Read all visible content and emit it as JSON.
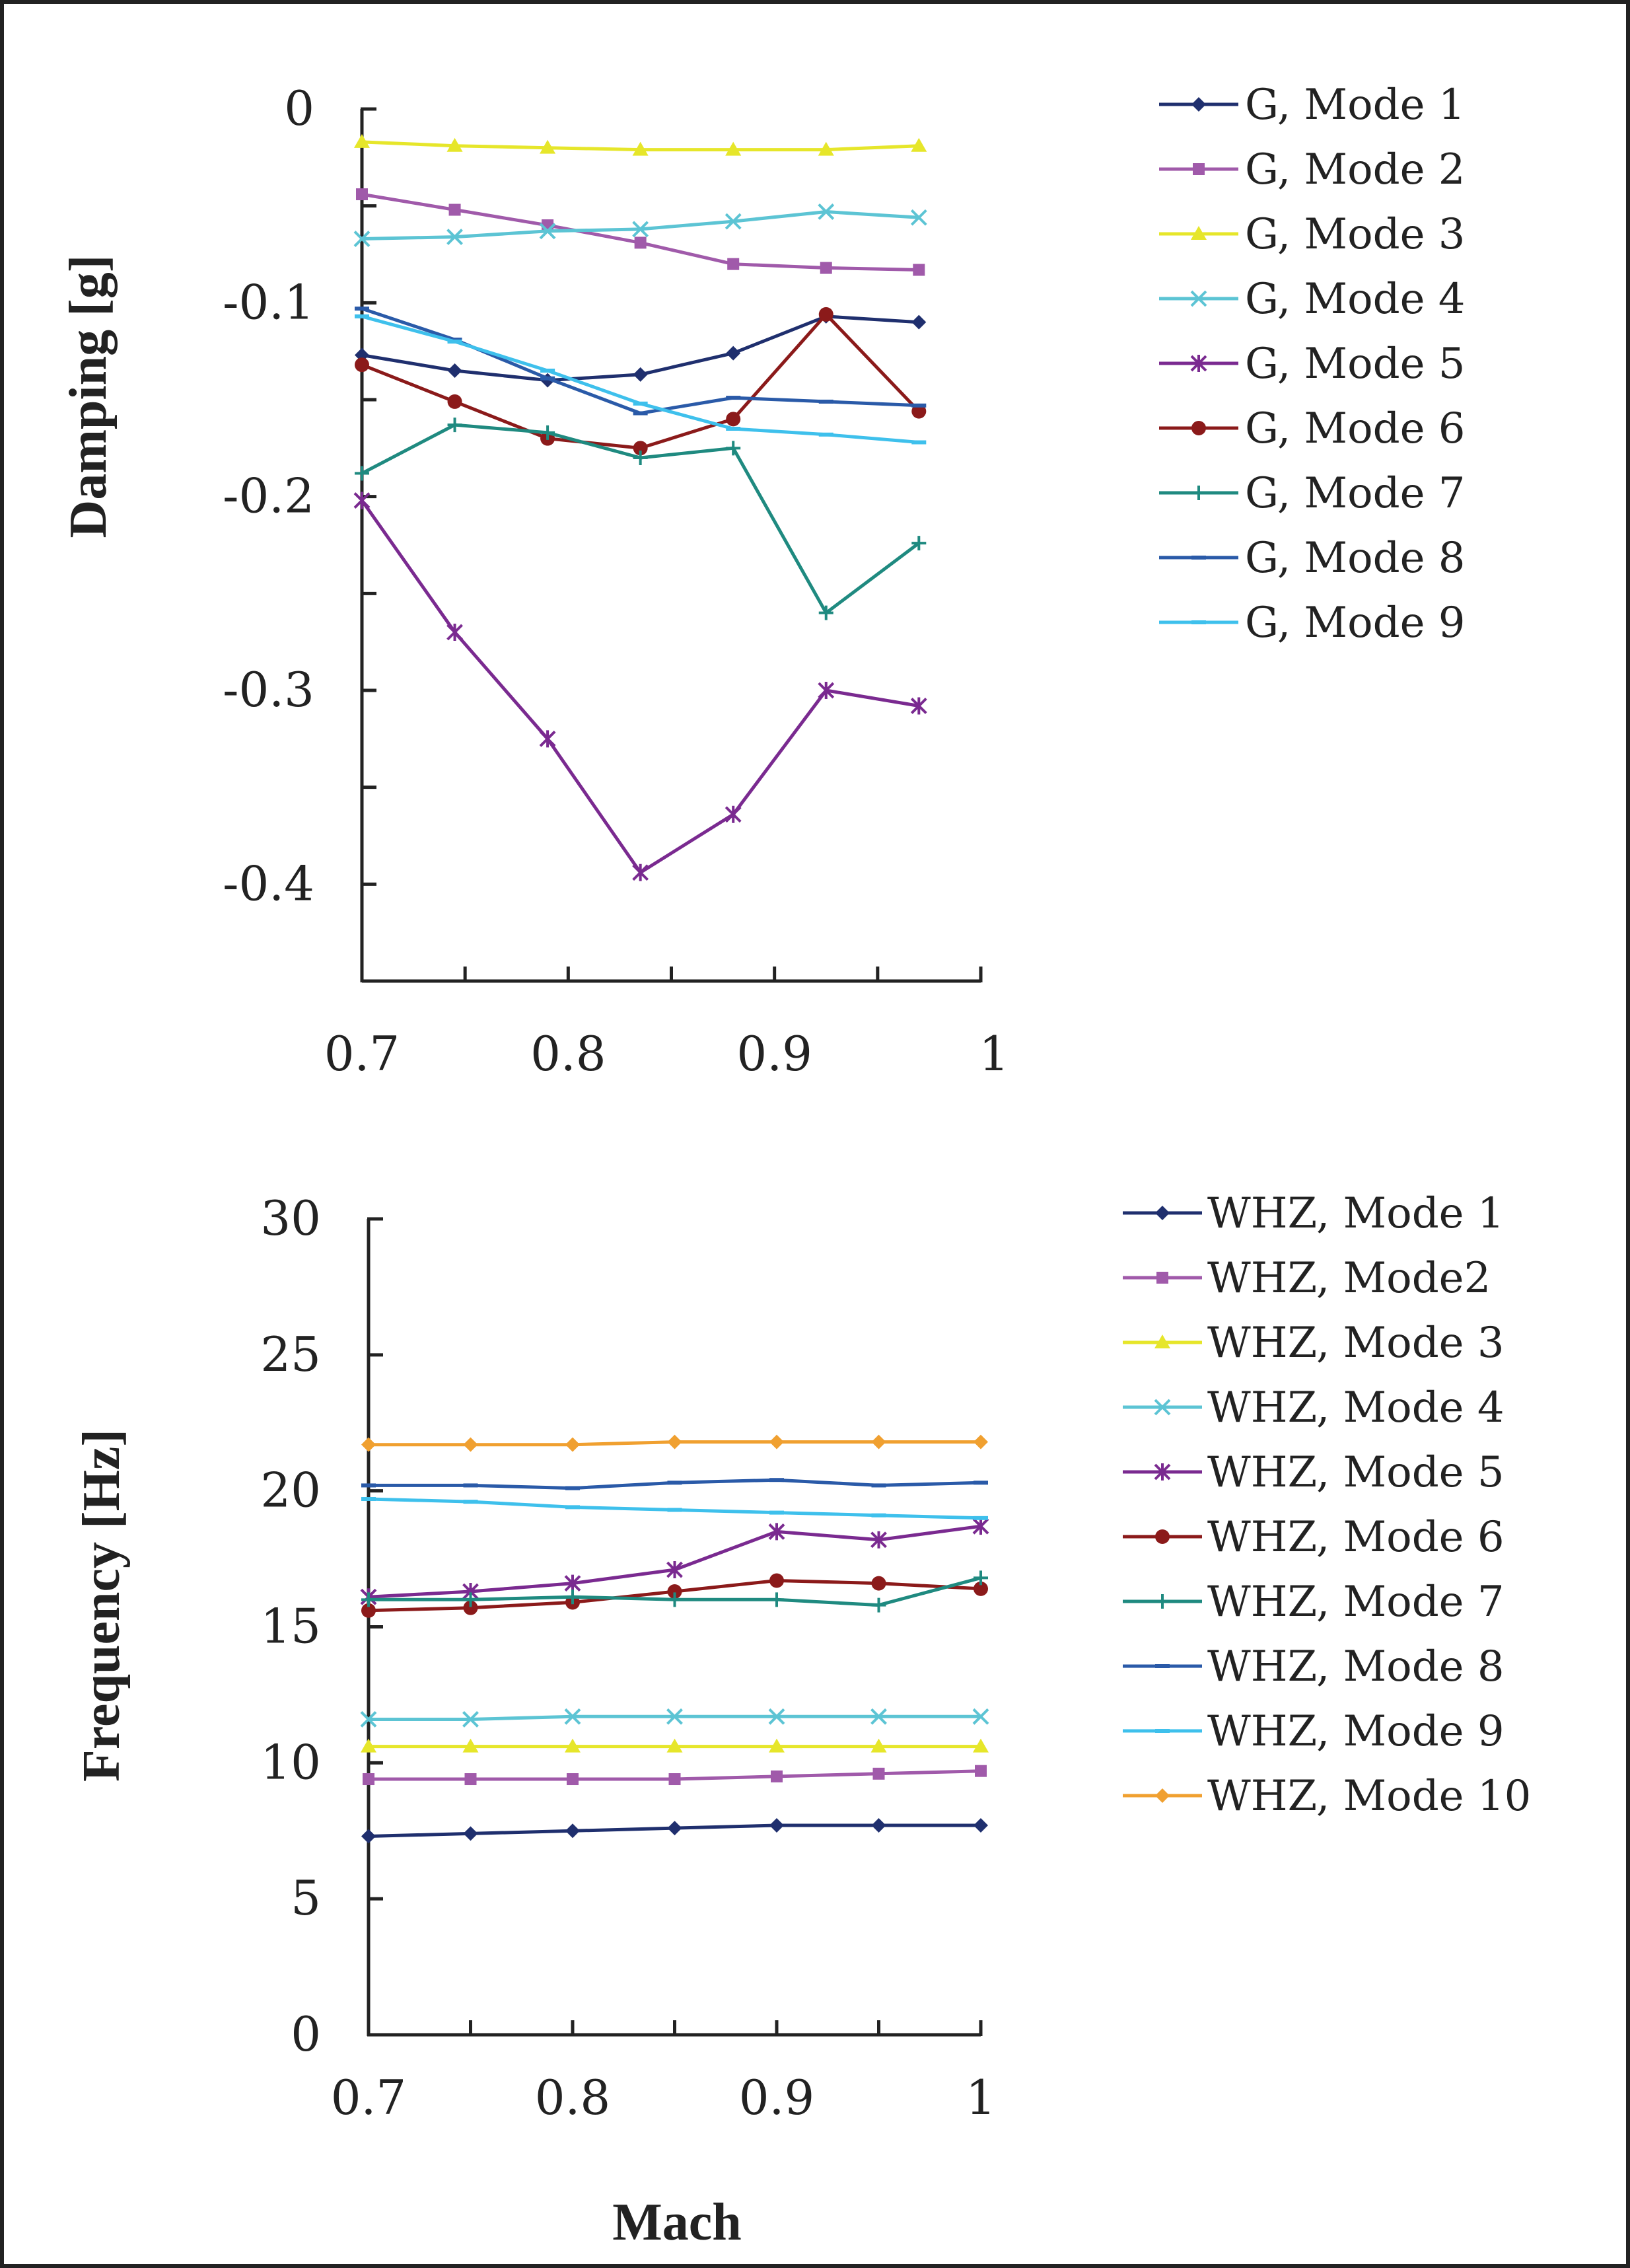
{
  "chart_data": [
    {
      "type": "line",
      "title": "",
      "xlabel": "",
      "ylabel": "Damping [g]",
      "xlim": [
        0.7,
        1.0
      ],
      "ylim": [
        -0.45,
        0
      ],
      "x_ticks": [
        "0.7",
        "0.8",
        "0.9",
        "1"
      ],
      "y_ticks": [
        "0",
        "-0.1",
        "-0.2",
        "-0.3",
        "-0.4"
      ],
      "x": [
        0.7,
        0.745,
        0.79,
        0.835,
        0.88,
        0.925,
        0.97
      ],
      "legend_position": "right",
      "series": [
        {
          "name": "G, Mode 1",
          "color": "#1f2f6e",
          "marker": "diamond",
          "values": [
            -0.127,
            -0.135,
            -0.14,
            -0.137,
            -0.126,
            -0.107,
            -0.11
          ]
        },
        {
          "name": "G, Mode 2",
          "color": "#a05aaa",
          "marker": "square",
          "values": [
            -0.044,
            -0.052,
            -0.06,
            -0.069,
            -0.08,
            -0.082,
            -0.083
          ]
        },
        {
          "name": "G, Mode 3",
          "color": "#e6e62a",
          "marker": "triangle",
          "values": [
            -0.017,
            -0.019,
            -0.02,
            -0.021,
            -0.021,
            -0.021,
            -0.019
          ]
        },
        {
          "name": "G, Mode 4",
          "color": "#5cc4d4",
          "marker": "x",
          "values": [
            -0.067,
            -0.066,
            -0.063,
            -0.062,
            -0.058,
            -0.053,
            -0.056
          ]
        },
        {
          "name": "G, Mode 5",
          "color": "#7a2a90",
          "marker": "star",
          "values": [
            -0.202,
            -0.27,
            -0.325,
            -0.394,
            -0.364,
            -0.3,
            -0.308
          ]
        },
        {
          "name": "G, Mode 6",
          "color": "#8b1a1a",
          "marker": "circle",
          "values": [
            -0.132,
            -0.151,
            -0.17,
            -0.175,
            -0.16,
            -0.106,
            -0.156
          ]
        },
        {
          "name": "G, Mode 7",
          "color": "#1f8a80",
          "marker": "plus",
          "values": [
            -0.188,
            -0.163,
            -0.167,
            -0.18,
            -0.175,
            -0.26,
            -0.224
          ]
        },
        {
          "name": "G, Mode 8",
          "color": "#2a5aa8",
          "marker": "dash",
          "values": [
            -0.103,
            -0.119,
            -0.139,
            -0.157,
            -0.149,
            -0.151,
            -0.153
          ]
        },
        {
          "name": "G, Mode 9",
          "color": "#3ec0ec",
          "marker": "dash",
          "values": [
            -0.107,
            -0.12,
            -0.135,
            -0.152,
            -0.165,
            -0.168,
            -0.172
          ]
        }
      ]
    },
    {
      "type": "line",
      "title": "",
      "xlabel": "Mach",
      "ylabel": "Frequency [Hz]",
      "xlim": [
        0.7,
        1.0
      ],
      "ylim": [
        0,
        30
      ],
      "x_ticks": [
        "0.7",
        "0.8",
        "0.9",
        "1"
      ],
      "y_ticks": [
        "30",
        "25",
        "20",
        "15",
        "10",
        "5",
        "0"
      ],
      "x": [
        0.7,
        0.75,
        0.8,
        0.85,
        0.9,
        0.95,
        1.0
      ],
      "legend_position": "right",
      "series": [
        {
          "name": "WHZ, Mode 1",
          "color": "#1f2f6e",
          "marker": "diamond",
          "values": [
            7.3,
            7.4,
            7.5,
            7.6,
            7.7,
            7.7,
            7.7
          ]
        },
        {
          "name": "WHZ, Mode2",
          "color": "#a05aaa",
          "marker": "square",
          "values": [
            9.4,
            9.4,
            9.4,
            9.4,
            9.5,
            9.6,
            9.7
          ]
        },
        {
          "name": "WHZ, Mode 3",
          "color": "#e6e62a",
          "marker": "triangle",
          "values": [
            10.6,
            10.6,
            10.6,
            10.6,
            10.6,
            10.6,
            10.6
          ]
        },
        {
          "name": "WHZ, Mode 4",
          "color": "#5cc4d4",
          "marker": "x",
          "values": [
            11.6,
            11.6,
            11.7,
            11.7,
            11.7,
            11.7,
            11.7
          ]
        },
        {
          "name": "WHZ, Mode 5",
          "color": "#7a2a90",
          "marker": "star",
          "values": [
            16.1,
            16.3,
            16.6,
            17.1,
            18.5,
            18.2,
            18.7
          ]
        },
        {
          "name": "WHZ, Mode 6",
          "color": "#8b1a1a",
          "marker": "circle",
          "values": [
            15.6,
            15.7,
            15.9,
            16.3,
            16.7,
            16.6,
            16.4
          ]
        },
        {
          "name": "WHZ, Mode 7",
          "color": "#1f8a80",
          "marker": "plus",
          "values": [
            16.0,
            16.0,
            16.1,
            16.0,
            16.0,
            15.8,
            16.8
          ]
        },
        {
          "name": "WHZ, Mode 8",
          "color": "#2a5aa8",
          "marker": "dash",
          "values": [
            20.2,
            20.2,
            20.1,
            20.3,
            20.4,
            20.2,
            20.3
          ]
        },
        {
          "name": "WHZ, Mode 9",
          "color": "#3ec0ec",
          "marker": "dash",
          "values": [
            19.7,
            19.6,
            19.4,
            19.3,
            19.2,
            19.1,
            19.0
          ]
        },
        {
          "name": "WHZ, Mode 10",
          "color": "#f0a030",
          "marker": "diamond",
          "values": [
            21.7,
            21.7,
            21.7,
            21.8,
            21.8,
            21.8,
            21.8
          ]
        }
      ]
    }
  ]
}
